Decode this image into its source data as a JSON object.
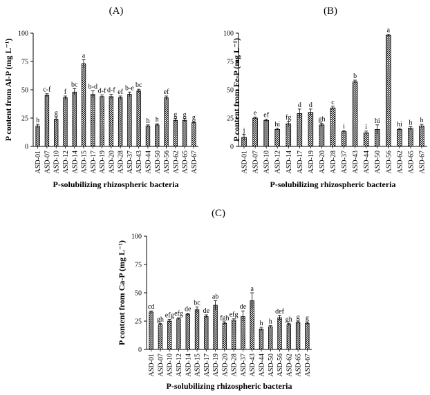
{
  "chart_data": [
    {
      "type": "bar",
      "panel_label": "(A)",
      "ylabel": "P content from Al-P (mg L⁻¹)",
      "xlabel": "P-solubilizing rhizospheric bacteria",
      "ylim": [
        0,
        100
      ],
      "yticks": [
        "0",
        "25",
        "50",
        "75",
        "100"
      ],
      "categories": [
        "ASD-01",
        "ASD-07",
        "ASD-10",
        "ASD-12",
        "ASD-14",
        "ASD-15",
        "ASD-17",
        "ASD-19",
        "ASD-20",
        "ASD-28",
        "ASD-37",
        "ASD-43",
        "ASD-44",
        "ASD-50",
        "ASD-56",
        "ASD-62",
        "ASD-65",
        "ASD-67"
      ],
      "values": [
        18,
        45,
        24,
        43,
        48,
        73,
        46,
        44,
        44,
        43,
        46,
        49,
        18,
        19,
        43,
        23,
        23,
        21
      ],
      "errors": [
        1.5,
        1.5,
        2,
        1.5,
        3,
        3.5,
        3,
        1.5,
        2,
        1.5,
        2,
        1.5,
        1,
        1,
        1.5,
        1.5,
        1.5,
        1
      ],
      "letters": [
        "h",
        "c-f",
        "g",
        "f",
        "bc",
        "a",
        "b-d",
        "d-f",
        "d-f",
        "ef",
        "b-e",
        "bc",
        "h",
        "h",
        "ef",
        "g",
        "g",
        "g"
      ]
    },
    {
      "type": "bar",
      "panel_label": "(B)",
      "ylabel": "P content from Fe-P (mg L⁻¹)",
      "xlabel": "P-solubilizing rhizospheric bacteria",
      "ylim": [
        0,
        100
      ],
      "yticks": [
        "0",
        "25",
        "50",
        "75",
        "100"
      ],
      "categories": [
        "ASD-01",
        "ASD-07",
        "ASD-10",
        "ASD-12",
        "ASD-14",
        "ASD-17",
        "ASD-19",
        "ASD-20",
        "ASD-28",
        "ASD-37",
        "ASD-43",
        "ASD-44",
        "ASD-50",
        "ASD-56",
        "ASD-62",
        "ASD-65",
        "ASD-67"
      ],
      "values": [
        8,
        25,
        23,
        15,
        20,
        29,
        30,
        19,
        34,
        13,
        57,
        12,
        15,
        98,
        15,
        16,
        18
      ],
      "errors": [
        2.5,
        1,
        1,
        1,
        2,
        4,
        3,
        1.5,
        1.5,
        1,
        1.5,
        1.5,
        4,
        1,
        1,
        1.5,
        1.5
      ],
      "letters": [
        "j",
        "e",
        "ef",
        "hi",
        "fg",
        "d",
        "d",
        "gh",
        "c",
        "i",
        "b",
        "i",
        "hi",
        "a",
        "hi",
        "h",
        "h"
      ]
    },
    {
      "type": "bar",
      "panel_label": "(C)",
      "ylabel": "P content from Ca-P (mg L⁻¹)",
      "xlabel": "P-solubilizing rhizospheric bacteria",
      "ylim": [
        0,
        100
      ],
      "yticks": [
        "0",
        "25",
        "50",
        "75",
        "100"
      ],
      "categories": [
        "ASD-01",
        "ASD-07",
        "ASD-10",
        "ASD-12",
        "ASD-14",
        "ASD-15",
        "ASD-17",
        "ASD-19",
        "ASD-20",
        "ASD-28",
        "ASD-37",
        "ASD-43",
        "ASD-44",
        "ASD-50",
        "ASD-56",
        "ASD-62",
        "ASD-65",
        "ASD-67"
      ],
      "values": [
        33,
        22,
        25,
        27,
        31,
        35,
        29,
        39,
        23,
        26,
        29,
        43,
        18,
        20,
        28,
        22,
        24,
        23
      ],
      "errors": [
        1,
        1,
        1.5,
        1,
        1,
        2.5,
        1.5,
        4,
        1,
        1,
        5,
        7,
        1.5,
        1,
        2,
        1,
        1,
        1
      ],
      "letters": [
        "cd",
        "gh",
        "efg",
        "efg",
        "de",
        "bc",
        "de",
        "ab",
        "fgh",
        "efg",
        "de",
        "a",
        "h",
        "h",
        "def",
        "gh",
        "g",
        "g"
      ]
    }
  ]
}
